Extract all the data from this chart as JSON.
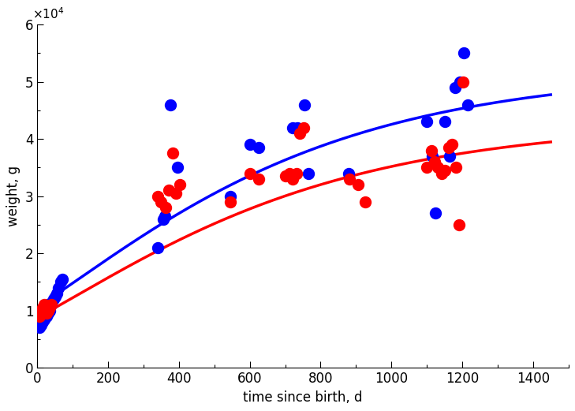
{
  "xlabel": "time since birth, d",
  "ylabel": "weight, g",
  "xlim": [
    0,
    1500
  ],
  "ylim": [
    0,
    60000
  ],
  "x_ticks": [
    0,
    200,
    400,
    600,
    800,
    1000,
    1200,
    1400
  ],
  "y_ticks": [
    0,
    10000,
    20000,
    30000,
    40000,
    50000,
    60000
  ],
  "male_color": "#0000FF",
  "female_color": "#FF0000",
  "male_scatter": [
    [
      5,
      7000
    ],
    [
      10,
      7500
    ],
    [
      15,
      8000
    ],
    [
      20,
      8500
    ],
    [
      25,
      9000
    ],
    [
      30,
      9500
    ],
    [
      35,
      10000
    ],
    [
      40,
      11000
    ],
    [
      45,
      12000
    ],
    [
      50,
      12500
    ],
    [
      55,
      13000
    ],
    [
      60,
      14000
    ],
    [
      65,
      15000
    ],
    [
      70,
      15500
    ],
    [
      340,
      21000
    ],
    [
      355,
      26000
    ],
    [
      360,
      26500
    ],
    [
      375,
      46000
    ],
    [
      395,
      35000
    ],
    [
      545,
      30000
    ],
    [
      600,
      39000
    ],
    [
      625,
      38500
    ],
    [
      720,
      42000
    ],
    [
      735,
      42000
    ],
    [
      755,
      46000
    ],
    [
      765,
      34000
    ],
    [
      880,
      34000
    ],
    [
      1100,
      43000
    ],
    [
      1115,
      37000
    ],
    [
      1125,
      27000
    ],
    [
      1150,
      43000
    ],
    [
      1165,
      37000
    ],
    [
      1180,
      49000
    ],
    [
      1193,
      50000
    ],
    [
      1205,
      55000
    ],
    [
      1215,
      46000
    ]
  ],
  "female_scatter": [
    [
      5,
      9000
    ],
    [
      10,
      10000
    ],
    [
      15,
      10500
    ],
    [
      20,
      11000
    ],
    [
      25,
      9500
    ],
    [
      30,
      10000
    ],
    [
      35,
      10500
    ],
    [
      40,
      11000
    ],
    [
      340,
      30000
    ],
    [
      350,
      29000
    ],
    [
      362,
      28000
    ],
    [
      372,
      31000
    ],
    [
      382,
      37500
    ],
    [
      392,
      30500
    ],
    [
      402,
      32000
    ],
    [
      545,
      29000
    ],
    [
      600,
      34000
    ],
    [
      625,
      33000
    ],
    [
      700,
      33500
    ],
    [
      712,
      34000
    ],
    [
      722,
      33000
    ],
    [
      732,
      34000
    ],
    [
      742,
      41000
    ],
    [
      752,
      42000
    ],
    [
      882,
      33000
    ],
    [
      905,
      32000
    ],
    [
      925,
      29000
    ],
    [
      1100,
      35000
    ],
    [
      1112,
      38000
    ],
    [
      1122,
      36000
    ],
    [
      1132,
      35000
    ],
    [
      1142,
      34000
    ],
    [
      1152,
      34500
    ],
    [
      1162,
      38500
    ],
    [
      1172,
      39000
    ],
    [
      1182,
      35000
    ],
    [
      1192,
      25000
    ],
    [
      1202,
      50000
    ]
  ],
  "male_L": 52000,
  "male_k": 0.00185,
  "male_shift": 480,
  "female_L": 43000,
  "female_k": 0.00185,
  "female_shift": 480,
  "line_width": 2.5,
  "marker_size": 7
}
